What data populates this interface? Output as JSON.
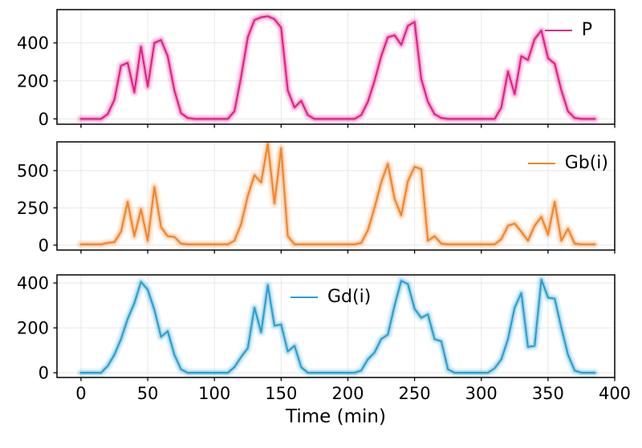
{
  "chart_data": {
    "type": "line",
    "xlabel": "Time (min)",
    "xlim": [
      -18,
      400
    ],
    "xticks": [
      0,
      50,
      100,
      150,
      200,
      250,
      300,
      350,
      400
    ],
    "grid": true,
    "grid_color": "#e8e8e8",
    "axis_color": "#000000",
    "x": [
      0,
      5,
      10,
      15,
      20,
      25,
      30,
      35,
      40,
      45,
      50,
      55,
      60,
      65,
      70,
      75,
      80,
      85,
      90,
      95,
      100,
      105,
      110,
      115,
      120,
      125,
      130,
      135,
      140,
      145,
      150,
      155,
      160,
      165,
      170,
      175,
      180,
      185,
      190,
      195,
      200,
      205,
      210,
      215,
      220,
      225,
      230,
      235,
      240,
      245,
      250,
      255,
      260,
      265,
      270,
      275,
      280,
      285,
      290,
      295,
      300,
      305,
      310,
      315,
      320,
      325,
      330,
      335,
      340,
      345,
      350,
      355,
      360,
      365,
      370,
      375,
      380,
      385
    ],
    "subplots": [
      {
        "legend": "P",
        "color": "#e2218a",
        "legend_position": "upper-right",
        "yticks": [
          0,
          200,
          400
        ],
        "ylim": [
          -28,
          575
        ],
        "values": [
          0,
          0,
          0,
          0,
          25,
          100,
          280,
          295,
          140,
          380,
          170,
          400,
          415,
          330,
          150,
          30,
          5,
          0,
          0,
          0,
          0,
          0,
          0,
          40,
          220,
          430,
          520,
          535,
          540,
          525,
          480,
          150,
          60,
          95,
          20,
          0,
          0,
          0,
          0,
          0,
          0,
          0,
          20,
          90,
          200,
          330,
          430,
          440,
          390,
          490,
          510,
          210,
          90,
          25,
          5,
          0,
          0,
          0,
          0,
          0,
          0,
          0,
          0,
          60,
          250,
          130,
          330,
          310,
          420,
          465,
          320,
          290,
          150,
          40,
          5,
          0,
          0,
          0
        ]
      },
      {
        "legend": "Gb(i)",
        "color": "#f0862c",
        "legend_position": "upper-right",
        "yticks": [
          0,
          250,
          500
        ],
        "ylim": [
          -33,
          693
        ],
        "values": [
          5,
          5,
          5,
          5,
          15,
          20,
          90,
          290,
          60,
          240,
          30,
          390,
          120,
          60,
          55,
          10,
          5,
          5,
          5,
          5,
          5,
          5,
          5,
          30,
          140,
          330,
          470,
          420,
          680,
          280,
          650,
          60,
          5,
          5,
          5,
          5,
          5,
          5,
          5,
          5,
          5,
          5,
          15,
          100,
          250,
          420,
          545,
          310,
          200,
          430,
          525,
          510,
          30,
          60,
          10,
          5,
          5,
          5,
          5,
          5,
          5,
          5,
          5,
          40,
          130,
          145,
          90,
          30,
          130,
          190,
          70,
          290,
          30,
          110,
          10,
          5,
          5,
          5
        ]
      },
      {
        "legend": "Gd(i)",
        "color": "#2b9fd0",
        "legend_position": "upper-center",
        "yticks": [
          0,
          200,
          400
        ],
        "ylim": [
          -21,
          436
        ],
        "values": [
          0,
          0,
          0,
          0,
          30,
          80,
          150,
          240,
          310,
          405,
          370,
          280,
          160,
          185,
          80,
          15,
          0,
          0,
          0,
          0,
          0,
          0,
          0,
          25,
          70,
          110,
          290,
          180,
          390,
          210,
          215,
          95,
          120,
          25,
          0,
          0,
          0,
          0,
          0,
          0,
          0,
          0,
          10,
          60,
          90,
          150,
          170,
          300,
          410,
          395,
          285,
          245,
          260,
          150,
          140,
          15,
          0,
          0,
          0,
          0,
          0,
          0,
          20,
          60,
          150,
          290,
          355,
          115,
          120,
          415,
          335,
          330,
          200,
          80,
          10,
          0,
          0,
          0
        ]
      }
    ]
  }
}
